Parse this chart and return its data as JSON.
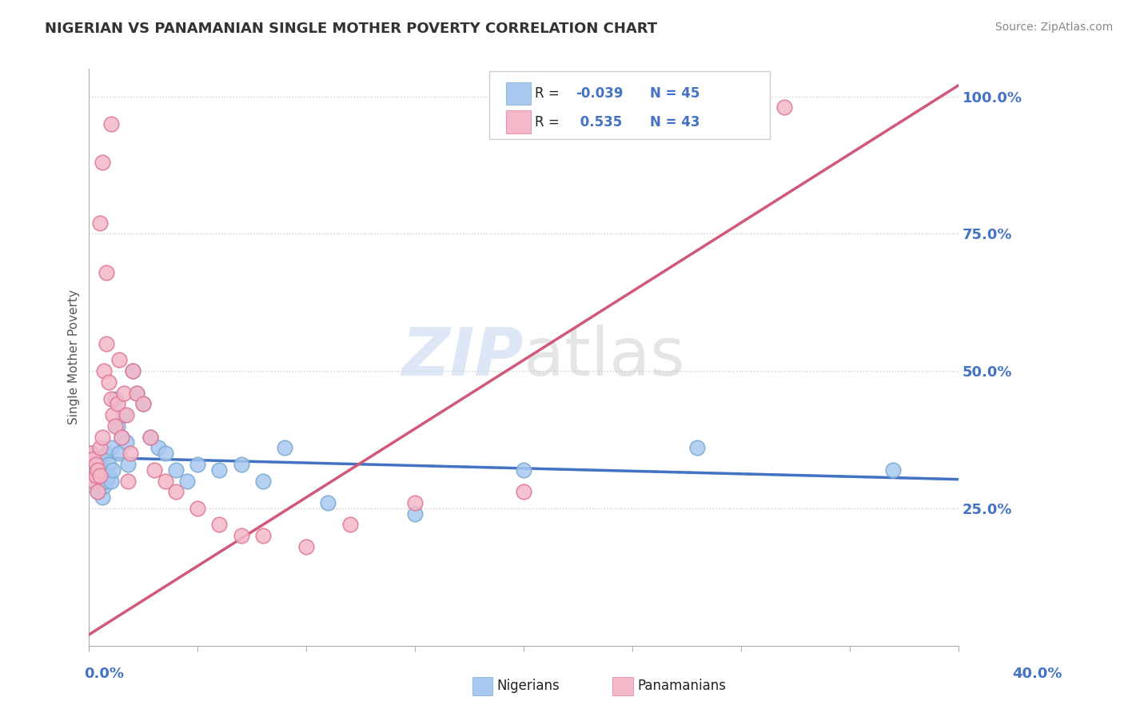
{
  "title": "NIGERIAN VS PANAMANIAN SINGLE MOTHER POVERTY CORRELATION CHART",
  "source": "Source: ZipAtlas.com",
  "ylabel": "Single Mother Poverty",
  "ytick_labels": [
    "25.0%",
    "50.0%",
    "75.0%",
    "100.0%"
  ],
  "ytick_values": [
    0.25,
    0.5,
    0.75,
    1.0
  ],
  "xlim": [
    0.0,
    0.4
  ],
  "ylim": [
    0.0,
    1.05
  ],
  "watermark_zip": "ZIP",
  "watermark_atlas": "atlas",
  "blue_R": -0.039,
  "blue_N": 45,
  "pink_R": 0.535,
  "pink_N": 43,
  "bg_color": "#ffffff",
  "blue_dot_color": "#a8c8f0",
  "pink_dot_color": "#f4b8c8",
  "blue_edge_color": "#7aaad0",
  "pink_edge_color": "#e07898",
  "blue_line_color": "#4472c4",
  "pink_line_color": "#d05878",
  "grid_color": "#cccccc",
  "axis_color": "#aaaaaa",
  "title_color": "#333333",
  "source_color": "#888888",
  "tick_color": "#4472c4",
  "r_color": "#4472c4",
  "blue_scatter_x": [
    0.001,
    0.002,
    0.002,
    0.003,
    0.003,
    0.004,
    0.004,
    0.005,
    0.005,
    0.006,
    0.006,
    0.007,
    0.007,
    0.008,
    0.008,
    0.009,
    0.009,
    0.01,
    0.01,
    0.011,
    0.012,
    0.013,
    0.014,
    0.015,
    0.016,
    0.017,
    0.018,
    0.02,
    0.022,
    0.025,
    0.028,
    0.032,
    0.035,
    0.04,
    0.045,
    0.05,
    0.06,
    0.07,
    0.08,
    0.09,
    0.11,
    0.15,
    0.2,
    0.28,
    0.37
  ],
  "blue_scatter_y": [
    0.35,
    0.33,
    0.3,
    0.32,
    0.31,
    0.29,
    0.28,
    0.34,
    0.31,
    0.3,
    0.27,
    0.32,
    0.29,
    0.35,
    0.3,
    0.33,
    0.31,
    0.3,
    0.36,
    0.32,
    0.45,
    0.4,
    0.35,
    0.38,
    0.42,
    0.37,
    0.33,
    0.5,
    0.46,
    0.44,
    0.38,
    0.36,
    0.35,
    0.32,
    0.3,
    0.33,
    0.32,
    0.33,
    0.3,
    0.36,
    0.26,
    0.24,
    0.32,
    0.36,
    0.32
  ],
  "pink_scatter_x": [
    0.001,
    0.002,
    0.002,
    0.003,
    0.003,
    0.004,
    0.004,
    0.005,
    0.005,
    0.006,
    0.007,
    0.008,
    0.009,
    0.01,
    0.011,
    0.012,
    0.013,
    0.014,
    0.015,
    0.016,
    0.017,
    0.018,
    0.019,
    0.02,
    0.022,
    0.025,
    0.028,
    0.03,
    0.035,
    0.04,
    0.05,
    0.06,
    0.07,
    0.08,
    0.1,
    0.12,
    0.15,
    0.2,
    0.32,
    0.005,
    0.006,
    0.008,
    0.01
  ],
  "pink_scatter_y": [
    0.35,
    0.34,
    0.3,
    0.33,
    0.31,
    0.28,
    0.32,
    0.36,
    0.31,
    0.38,
    0.5,
    0.55,
    0.48,
    0.45,
    0.42,
    0.4,
    0.44,
    0.52,
    0.38,
    0.46,
    0.42,
    0.3,
    0.35,
    0.5,
    0.46,
    0.44,
    0.38,
    0.32,
    0.3,
    0.28,
    0.25,
    0.22,
    0.2,
    0.2,
    0.18,
    0.22,
    0.26,
    0.28,
    0.98,
    0.77,
    0.88,
    0.68,
    0.95
  ]
}
